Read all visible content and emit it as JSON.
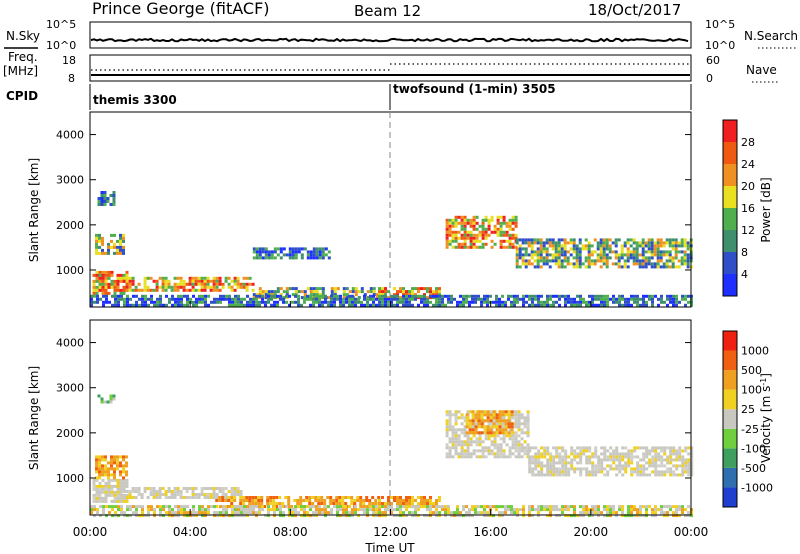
{
  "header": {
    "title": "Prince George (fitACF)",
    "beam": "Beam 12",
    "date": "18/Oct/2017"
  },
  "top_panels": {
    "nsky_label": "N.Sky",
    "nsearch_label": "N.Search",
    "nsky_ticks": [
      "10^5",
      "10^0"
    ],
    "nsearch_ticks": [
      "10^5",
      "10^0"
    ],
    "freq_label": "Freq.",
    "freq_unit": "[MHz]",
    "freq_ticks": [
      "18",
      "8"
    ],
    "nave_label": "Nave",
    "nave_ticks": [
      "60",
      "0"
    ],
    "cpid_label": "CPID",
    "cpid_modes": [
      {
        "label": "themis 3300",
        "start_hour": 0
      },
      {
        "label": "twofsound (1-min) 3505",
        "start_hour": 12
      }
    ]
  },
  "chart_data": [
    {
      "type": "heatmap",
      "name": "power",
      "xlabel": "",
      "ylabel": "Slant Range [km]",
      "xlim": [
        0,
        24
      ],
      "ylim": [
        180,
        4500
      ],
      "y_ticks": [
        1000,
        2000,
        3000,
        4000
      ],
      "x_ticks": [
        0,
        4,
        8,
        12,
        16,
        20,
        24
      ],
      "colorbar": {
        "label": "Power [dB]",
        "ticks": [
          "4",
          "8",
          "12",
          "16",
          "20",
          "24",
          "28"
        ],
        "colors": [
          "#1f2fff",
          "#2f4fc8",
          "#3f8f6f",
          "#4faf4f",
          "#e8e020",
          "#f09020",
          "#f05a10",
          "#f02020"
        ]
      },
      "bands": [
        {
          "t0": 0.1,
          "t1": 1.5,
          "r0": 500,
          "r1": 980,
          "level": "high"
        },
        {
          "t0": 0.2,
          "t1": 1.3,
          "r0": 1350,
          "r1": 1800,
          "level": "medium"
        },
        {
          "t0": 0.3,
          "t1": 1.0,
          "r0": 2450,
          "r1": 2750,
          "level": "low"
        },
        {
          "t0": 1.3,
          "t1": 6.5,
          "r0": 550,
          "r1": 850,
          "level": "high"
        },
        {
          "t0": 6.5,
          "t1": 11.5,
          "r0": 420,
          "r1": 620,
          "level": "medium"
        },
        {
          "t0": 11.5,
          "t1": 14.0,
          "r0": 400,
          "r1": 620,
          "level": "high"
        },
        {
          "t0": 14.2,
          "t1": 17.0,
          "r0": 1500,
          "r1": 2200,
          "level": "high"
        },
        {
          "t0": 17.0,
          "t1": 24.0,
          "r0": 1100,
          "r1": 1700,
          "level": "medium"
        },
        {
          "t0": 6.5,
          "t1": 9.5,
          "r0": 1250,
          "r1": 1500,
          "level": "low"
        },
        {
          "t0": 0.0,
          "t1": 24.0,
          "r0": 200,
          "r1": 450,
          "level": "low"
        }
      ]
    },
    {
      "type": "heatmap",
      "name": "velocity",
      "xlabel": "Time UT",
      "ylabel": "Slant Range [km]",
      "xlim": [
        0,
        24
      ],
      "ylim": [
        180,
        4500
      ],
      "y_ticks": [
        1000,
        2000,
        3000,
        4000
      ],
      "x_ticks": [
        0,
        4,
        8,
        12,
        16,
        20,
        24
      ],
      "x_tick_labels": [
        "00:00",
        "04:00",
        "08:00",
        "12:00",
        "16:00",
        "20:00",
        "00:00"
      ],
      "colorbar": {
        "label": "Velocity [m s^-1]",
        "ticks": [
          "1000",
          "500",
          "100",
          "25",
          "-25",
          "-100",
          "-500",
          "-1000"
        ],
        "colors": [
          "#1f3fd0",
          "#2f6fb0",
          "#3f9f5f",
          "#6fcf3f",
          "#c8c8c0",
          "#f0d020",
          "#f0a020",
          "#f06010",
          "#f02010"
        ]
      },
      "bands": [
        {
          "t0": 0.1,
          "t1": 1.5,
          "r0": 500,
          "r1": 980,
          "level": "ground"
        },
        {
          "t0": 0.2,
          "t1": 1.4,
          "r0": 1000,
          "r1": 1500,
          "level": "away"
        },
        {
          "t0": 0.3,
          "t1": 1.0,
          "r0": 2700,
          "r1": 2850,
          "level": "toward"
        },
        {
          "t0": 1.3,
          "t1": 6.0,
          "r0": 550,
          "r1": 800,
          "level": "ground"
        },
        {
          "t0": 5.0,
          "t1": 11.5,
          "r0": 400,
          "r1": 600,
          "level": "away"
        },
        {
          "t0": 11.5,
          "t1": 14.0,
          "r0": 350,
          "r1": 600,
          "level": "away"
        },
        {
          "t0": 14.2,
          "t1": 17.5,
          "r0": 1500,
          "r1": 2500,
          "level": "ground"
        },
        {
          "t0": 15.0,
          "t1": 16.8,
          "r0": 2000,
          "r1": 2500,
          "level": "away"
        },
        {
          "t0": 17.5,
          "t1": 24.0,
          "r0": 1100,
          "r1": 1700,
          "level": "ground"
        },
        {
          "t0": 0.0,
          "t1": 24.0,
          "r0": 200,
          "r1": 400,
          "level": "mixed"
        }
      ]
    }
  ]
}
